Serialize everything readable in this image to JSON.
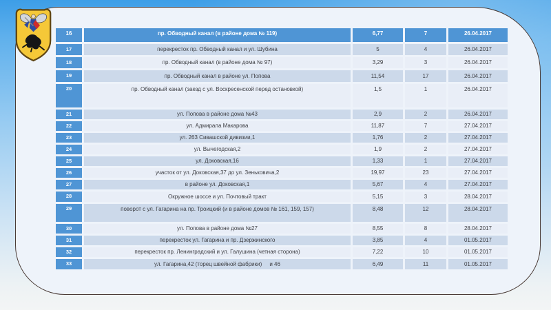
{
  "colors": {
    "accent": "#4f95d5",
    "band-dark": "#ccd9ea",
    "band-light": "#e9eef7",
    "panel-bg": "#eef3fa",
    "panel-border": "#4a3b36",
    "text": "#3f4045"
  },
  "logo": {
    "name": "Герб Архангельска"
  },
  "table": {
    "rows": [
      {
        "num": "16",
        "desc": "пр. Обводный канал (в районе дома № 119)",
        "v1": "6,77",
        "v2": "7",
        "date": "26.04.2017"
      },
      {
        "num": "17",
        "desc": "перекресток пр. Обводный канал и ул. Шубина",
        "v1": "5",
        "v2": "4",
        "date": "26.04.2017"
      },
      {
        "num": "18",
        "desc": "пр. Обводный канал (в районе дома № 97)",
        "v1": "3,29",
        "v2": "3",
        "date": "26.04.2017"
      },
      {
        "num": "19",
        "desc": "пр. Обводный канал в районе ул. Попова",
        "v1": "11,54",
        "v2": "17",
        "date": "26.04.2017"
      },
      {
        "num": "20",
        "desc": "пр. Обводный канал (заезд с ул. Воскресенской перед остановкой)",
        "v1": "1,5",
        "v2": "1",
        "date": "26.04.2017"
      },
      {
        "num": "21",
        "desc": "ул. Попова в районе дома №43",
        "v1": "2,9",
        "v2": "2",
        "date": "26.04.2017"
      },
      {
        "num": "22",
        "desc": "ул. Адмирала Макарова",
        "v1": "11,87",
        "v2": "7",
        "date": "27.04.2017"
      },
      {
        "num": "23",
        "desc": "ул. 263 Сивашской дивизии,1",
        "v1": "1,76",
        "v2": "2",
        "date": "27.04.2017"
      },
      {
        "num": "24",
        "desc": "ул. Вычегодская,2",
        "v1": "1,9",
        "v2": "2",
        "date": "27.04.2017"
      },
      {
        "num": "25",
        "desc": "ул. Доковская,16",
        "v1": "1,33",
        "v2": "1",
        "date": "27.04.2017"
      },
      {
        "num": "26",
        "desc": "участок от ул. Доковская,37 до ул. Зеньковича,2",
        "v1": "19,97",
        "v2": "23",
        "date": "27.04.2017"
      },
      {
        "num": "27",
        "desc": "в районе ул. Доковская,1",
        "v1": "5,67",
        "v2": "4",
        "date": "27.04.2017"
      },
      {
        "num": "28",
        "desc": "Окружное шоссе и ул. Почтовый тракт",
        "v1": "5,15",
        "v2": "3",
        "date": "28.04.2017"
      },
      {
        "num": "29",
        "desc": "поворот с ул. Гагарина на пр. Троицкий (и в районе домов № 161, 159, 157)",
        "v1": "8,48",
        "v2": "12",
        "date": "28.04.2017"
      },
      {
        "num": "30",
        "desc": "ул. Попова в районе дома №27",
        "v1": "8,55",
        "v2": "8",
        "date": "28.04.2017"
      },
      {
        "num": "31",
        "desc": "перекресток ул. Гагарина и пр. Дзержинского",
        "v1": "3,85",
        "v2": "4",
        "date": "01.05.2017"
      },
      {
        "num": "32",
        "desc": "перекресток пр. Ленинградский и ул. Галушина (четная сторона)",
        "v1": "7,22",
        "v2": "10",
        "date": "01.05.2017"
      },
      {
        "num": "33",
        "desc": "ул. Гагарина,42 (торец швейной фабрики)     и 46",
        "v1": "6,49",
        "v2": "11",
        "date": "01.05.2017"
      }
    ]
  }
}
